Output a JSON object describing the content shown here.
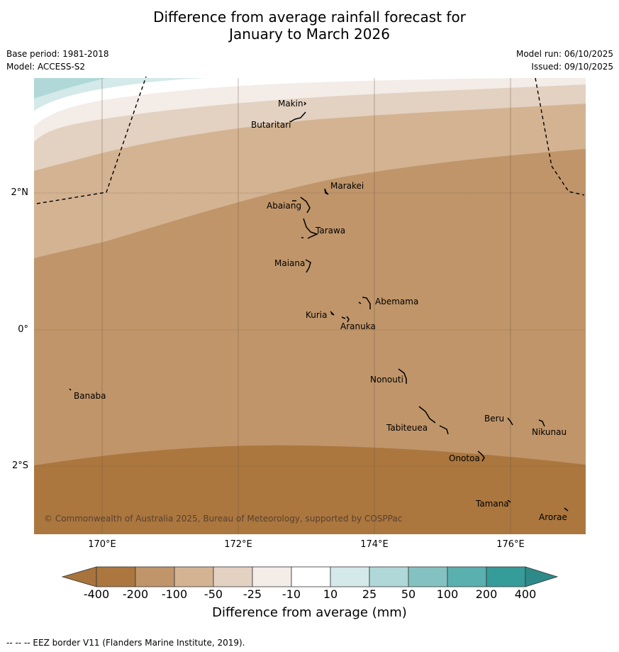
{
  "title": {
    "line1": "Difference from average rainfall forecast for",
    "line2": "January to March 2026"
  },
  "meta": {
    "base_period": "Base period: 1981-2018",
    "model": "Model: ACCESS-S2",
    "model_run": "Model run: 06/10/2025",
    "issued": "Issued: 09/10/2025"
  },
  "map": {
    "lat_labels": [
      "2°N",
      "0°",
      "2°S"
    ],
    "lon_labels": [
      "170°E",
      "172°E",
      "174°E",
      "176°E"
    ],
    "places": [
      "Makin",
      "Butaritari",
      "Marakei",
      "Abaiang",
      "Tarawa",
      "Maiana",
      "Abemama",
      "Kuria",
      "Aranuka",
      "Nonouti",
      "Banaba",
      "Beru",
      "Nikunau",
      "Tabiteuea",
      "Onotoa",
      "Tamana",
      "Arorae"
    ],
    "copyright": "© Commonwealth of Australia 2025, Bureau of Meteorology, supported by COSPPac",
    "colors": {
      "under": "#a8733c",
      "c_400": "#ab773e",
      "c_200": "#c0956a",
      "c_100": "#d3b392",
      "c_50": "#e3d1c1",
      "c_25": "#f3ece7",
      "c_10": "#ffffff",
      "p10": "#d4e9e9",
      "p25": "#b0d8d8",
      "p50": "#84c2c1",
      "p100": "#5ab0ae",
      "p200": "#359c9a",
      "over": "#2e8a88"
    }
  },
  "colorbar": {
    "ticks": [
      "-400",
      "-200",
      "-100",
      "-50",
      "-25",
      "-10",
      "10",
      "25",
      "50",
      "100",
      "200",
      "400"
    ],
    "label": "Difference from average (mm)"
  },
  "footnote": "--  --  -- EEZ border V11 (Flanders Marine Institute, 2019)."
}
